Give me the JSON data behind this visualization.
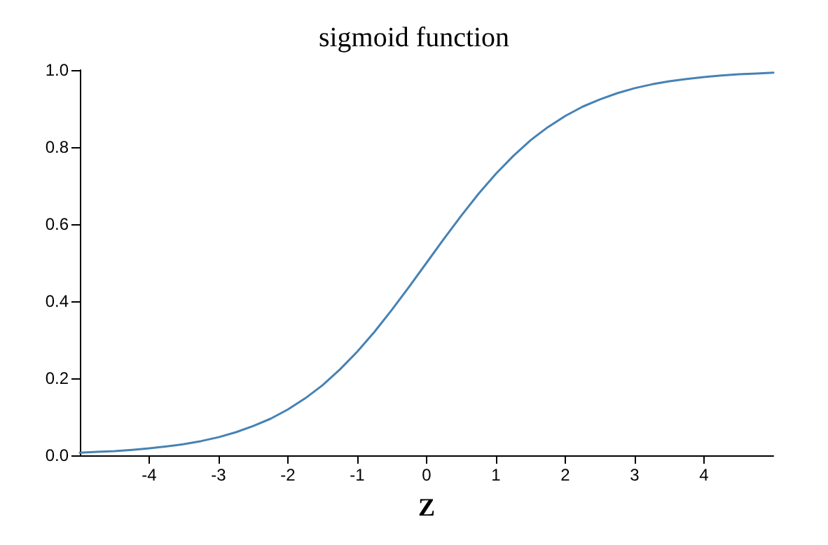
{
  "chart_data": {
    "type": "line",
    "title": "sigmoid function",
    "xlabel": "Z",
    "x": [
      -5,
      -4.75,
      -4.5,
      -4.25,
      -4,
      -3.75,
      -3.5,
      -3.25,
      -3,
      -2.75,
      -2.5,
      -2.25,
      -2,
      -1.75,
      -1.5,
      -1.25,
      -1,
      -0.75,
      -0.5,
      -0.25,
      0,
      0.25,
      0.5,
      0.75,
      1,
      1.25,
      1.5,
      1.75,
      2,
      2.25,
      2.5,
      2.75,
      3,
      3.25,
      3.5,
      3.75,
      4,
      4.25,
      4.5,
      4.75,
      5
    ],
    "series": [
      {
        "color": "#4682b4",
        "values": [
          0.007,
          0.009,
          0.011,
          0.014,
          0.018,
          0.023,
          0.029,
          0.037,
          0.047,
          0.06,
          0.076,
          0.095,
          0.119,
          0.148,
          0.182,
          0.223,
          0.269,
          0.321,
          0.378,
          0.438,
          0.5,
          0.562,
          0.622,
          0.679,
          0.731,
          0.777,
          0.818,
          0.852,
          0.881,
          0.905,
          0.924,
          0.94,
          0.953,
          0.963,
          0.971,
          0.977,
          0.982,
          0.986,
          0.989,
          0.991,
          0.993
        ]
      }
    ],
    "xlim": [
      -5,
      5
    ],
    "xticks": [
      -4,
      -3,
      -2,
      -1,
      0,
      1,
      2,
      3,
      4
    ],
    "ylim": [
      0,
      1
    ],
    "yticks": [
      {
        "value": 0,
        "label": "0.0"
      },
      {
        "value": 0.2,
        "label": "0.2"
      },
      {
        "value": 0.4,
        "label": "0.4"
      },
      {
        "value": 0.6,
        "label": "0.6"
      },
      {
        "value": 0.8,
        "label": "0.8"
      },
      {
        "value": 1,
        "label": "1.0"
      }
    ],
    "marker": "none",
    "line_style": "solid"
  }
}
